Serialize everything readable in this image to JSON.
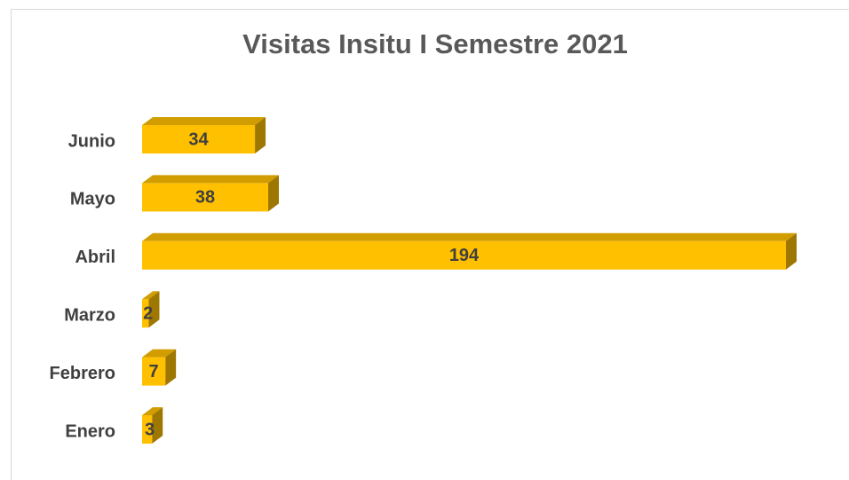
{
  "chart_data": {
    "type": "bar",
    "orientation": "horizontal",
    "title": "Visitas Insitu I Semestre 2021",
    "categories": [
      "Enero",
      "Febrero",
      "Marzo",
      "Abril",
      "Mayo",
      "Junio"
    ],
    "values": [
      3,
      7,
      2,
      194,
      38,
      34
    ],
    "color": "#ffc000"
  }
}
